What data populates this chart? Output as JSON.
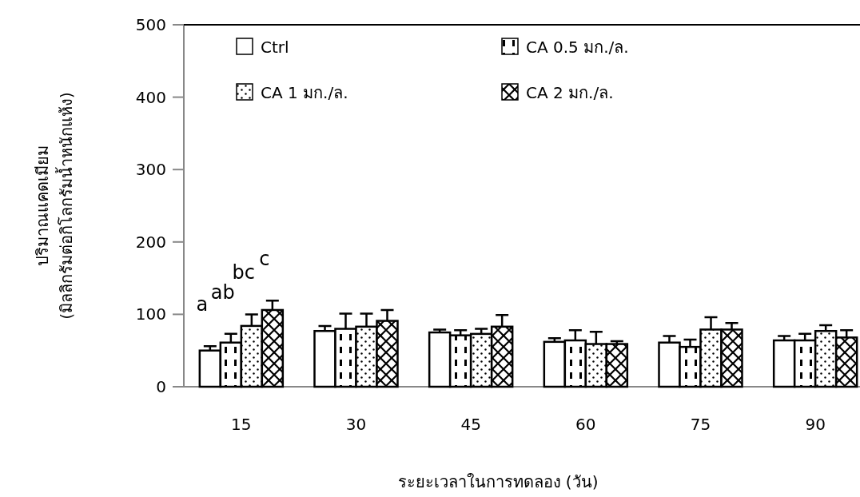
{
  "chart_data": {
    "type": "bar",
    "xlabel": "ระยะเวลาในการทดลอง (วัน)",
    "ylabel": "ปริมาณแคดเมียม\n(มิลลิกรัมต่อกิโลกรัมน้ำหนักแห้ง)",
    "categories": [
      "15",
      "30",
      "45",
      "60",
      "75",
      "90"
    ],
    "series": [
      {
        "name": "Ctrl",
        "color": "#000000",
        "values": [
          50,
          77,
          75,
          62,
          61,
          64
        ],
        "errors": [
          6,
          7,
          4,
          5,
          9,
          6
        ]
      },
      {
        "name": "CA 0.5 มก./ล.",
        "color": "#000000",
        "values": [
          61,
          80,
          71,
          64,
          55,
          64
        ],
        "errors": [
          12,
          21,
          7,
          14,
          10,
          9
        ]
      },
      {
        "name": "CA 1 มก./ล.",
        "color": "#000000",
        "values": [
          84,
          83,
          73,
          59,
          79,
          77
        ],
        "errors": [
          16,
          18,
          7,
          17,
          17,
          8
        ]
      },
      {
        "name": "CA 2 มก./ล.",
        "color": "#000000",
        "values": [
          106,
          91,
          83,
          59,
          79,
          68
        ],
        "errors": [
          13,
          15,
          16,
          4,
          9,
          10
        ]
      }
    ],
    "annotations": [
      "a",
      "ab",
      "bc",
      "c"
    ],
    "ylim": [
      0,
      500
    ],
    "yticks": [
      0,
      100,
      200,
      300,
      400,
      500
    ],
    "legend": "top",
    "grid": false
  }
}
